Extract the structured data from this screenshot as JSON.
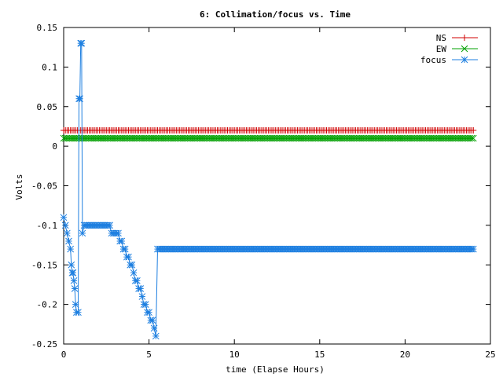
{
  "chart_data": {
    "type": "line",
    "title": "6: Collimation/focus vs. Time",
    "xlabel": "time (Elapse Hours)",
    "ylabel": "Volts",
    "xlim": [
      0,
      25
    ],
    "ylim": [
      -0.25,
      0.15
    ],
    "x_ticks": [
      0,
      5,
      10,
      15,
      20,
      25
    ],
    "y_ticks": [
      -0.25,
      -0.2,
      -0.15,
      -0.1,
      -0.05,
      0,
      0.05,
      0.1,
      0.15
    ],
    "x_tick_labels": [
      "0",
      "5",
      "10",
      "15",
      "20",
      "25"
    ],
    "y_tick_labels": [
      "-0.25",
      "-0.2",
      "-0.15",
      "-0.1",
      "-0.05",
      "0",
      "0.05",
      "0.1",
      "0.15"
    ],
    "grid": false,
    "legend_position": "top-right",
    "series": [
      {
        "name": "NS",
        "color": "#d00000",
        "marker": "plus",
        "x_start": 0,
        "x_end": 24,
        "x_step": 0.1,
        "constant_value": 0.02
      },
      {
        "name": "EW",
        "color": "#00a000",
        "marker": "cross",
        "x_start": 0,
        "x_end": 24,
        "x_step": 0.1,
        "constant_value": 0.01
      },
      {
        "name": "focus",
        "color": "#1e7fe0",
        "marker": "star",
        "points": [
          [
            0.0,
            -0.09
          ],
          [
            0.1,
            -0.1
          ],
          [
            0.2,
            -0.11
          ],
          [
            0.3,
            -0.12
          ],
          [
            0.4,
            -0.13
          ],
          [
            0.45,
            -0.15
          ],
          [
            0.5,
            -0.16
          ],
          [
            0.55,
            -0.16
          ],
          [
            0.6,
            -0.17
          ],
          [
            0.65,
            -0.18
          ],
          [
            0.7,
            -0.2
          ],
          [
            0.75,
            -0.21
          ],
          [
            0.85,
            -0.21
          ],
          [
            0.9,
            0.06
          ],
          [
            0.95,
            0.06
          ],
          [
            1.0,
            0.13
          ],
          [
            1.05,
            0.13
          ],
          [
            1.1,
            -0.11
          ],
          [
            1.2,
            -0.1
          ],
          [
            1.3,
            -0.1
          ],
          [
            1.4,
            -0.1
          ],
          [
            1.5,
            -0.1
          ],
          [
            1.6,
            -0.1
          ],
          [
            1.7,
            -0.1
          ],
          [
            1.8,
            -0.1
          ],
          [
            1.9,
            -0.1
          ],
          [
            2.0,
            -0.1
          ],
          [
            2.1,
            -0.1
          ],
          [
            2.2,
            -0.1
          ],
          [
            2.3,
            -0.1
          ],
          [
            2.4,
            -0.1
          ],
          [
            2.5,
            -0.1
          ],
          [
            2.6,
            -0.1
          ],
          [
            2.7,
            -0.1
          ],
          [
            2.8,
            -0.11
          ],
          [
            2.9,
            -0.11
          ],
          [
            3.0,
            -0.11
          ],
          [
            3.1,
            -0.11
          ],
          [
            3.2,
            -0.11
          ],
          [
            3.3,
            -0.12
          ],
          [
            3.4,
            -0.12
          ],
          [
            3.5,
            -0.13
          ],
          [
            3.6,
            -0.13
          ],
          [
            3.7,
            -0.14
          ],
          [
            3.8,
            -0.14
          ],
          [
            3.9,
            -0.15
          ],
          [
            4.0,
            -0.15
          ],
          [
            4.1,
            -0.16
          ],
          [
            4.2,
            -0.17
          ],
          [
            4.3,
            -0.17
          ],
          [
            4.4,
            -0.18
          ],
          [
            4.5,
            -0.18
          ],
          [
            4.6,
            -0.19
          ],
          [
            4.7,
            -0.2
          ],
          [
            4.8,
            -0.2
          ],
          [
            4.9,
            -0.21
          ],
          [
            5.0,
            -0.21
          ],
          [
            5.1,
            -0.22
          ],
          [
            5.2,
            -0.22
          ],
          [
            5.3,
            -0.23
          ],
          [
            5.4,
            -0.24
          ],
          [
            5.5,
            -0.13
          ],
          [
            5.6,
            -0.13
          ],
          [
            5.7,
            -0.13
          ],
          [
            5.8,
            -0.13
          ],
          [
            5.9,
            -0.13
          ],
          [
            6.0,
            -0.13
          ],
          [
            24.0,
            -0.13
          ]
        ],
        "plateau_from": 6.0,
        "plateau_value": -0.13
      }
    ]
  }
}
